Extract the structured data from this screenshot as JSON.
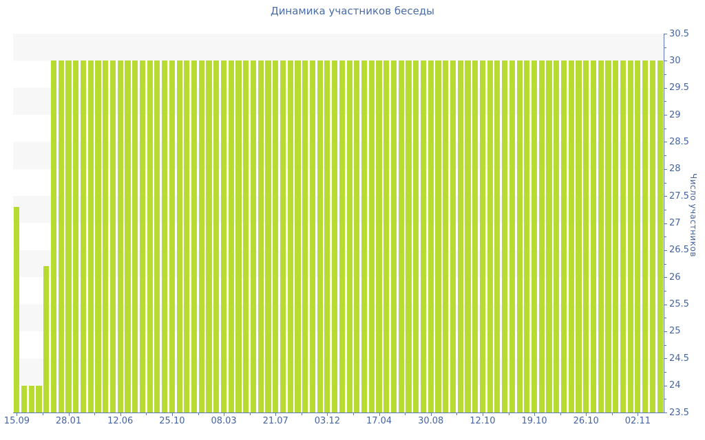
{
  "page": {
    "background_color": "#ffffff"
  },
  "chart": {
    "title": "Динамика участников беседы",
    "colors": {
      "bar": "#b7db31",
      "axis_line": "#5a78b7",
      "tick_text": "#44639f",
      "title_text": "#4a6da8",
      "stripe": "#f7f7f7",
      "background": "#ffffff"
    }
  },
  "chart_data": {
    "type": "bar",
    "title": "Динамика участников беседы",
    "xlabel": "",
    "ylabel": "Число участников",
    "ylim": [
      23.5,
      30.5
    ],
    "y_tick_step": 0.5,
    "grid": "alternating horizontal stripes every 0.5 units, no gridlines",
    "legend": "none",
    "y_axis_side": "right",
    "y_tick_labels": [
      "23.5",
      "24",
      "24.5",
      "25",
      "25.5",
      "26",
      "26.5",
      "27",
      "27.5",
      "28",
      "28.5",
      "29",
      "29.5",
      "30",
      "30.5"
    ],
    "x_tick_labels": [
      {
        "label": "15.09",
        "bar_index": 0
      },
      {
        "label": "28.01",
        "bar_index": 7
      },
      {
        "label": "12.06",
        "bar_index": 14
      },
      {
        "label": "25.10",
        "bar_index": 21
      },
      {
        "label": "08.03",
        "bar_index": 28
      },
      {
        "label": "21.07",
        "bar_index": 35
      },
      {
        "label": "03.12",
        "bar_index": 42
      },
      {
        "label": "17.04",
        "bar_index": 49
      },
      {
        "label": "30.08",
        "bar_index": 56
      },
      {
        "label": "12.10",
        "bar_index": 63
      },
      {
        "label": "19.10",
        "bar_index": 70
      },
      {
        "label": "26.10",
        "bar_index": 77
      },
      {
        "label": "02.11",
        "bar_index": 84
      }
    ],
    "values": [
      27.3,
      24,
      24,
      24,
      26.2,
      30,
      30,
      30,
      30,
      30,
      30,
      30,
      30,
      30,
      30,
      30,
      30,
      30,
      30,
      30,
      30,
      30,
      30,
      30,
      30,
      30,
      30,
      30,
      30,
      30,
      30,
      30,
      30,
      30,
      30,
      30,
      30,
      30,
      30,
      30,
      30,
      30,
      30,
      30,
      30,
      30,
      30,
      30,
      30,
      30,
      30,
      30,
      30,
      30,
      30,
      30,
      30,
      30,
      30,
      30,
      30,
      30,
      30,
      30,
      30,
      30,
      30,
      30,
      30,
      30,
      30,
      30,
      30,
      30,
      30,
      30,
      30,
      30,
      30,
      30,
      30,
      30,
      30,
      30,
      30,
      30,
      30,
      30
    ]
  }
}
